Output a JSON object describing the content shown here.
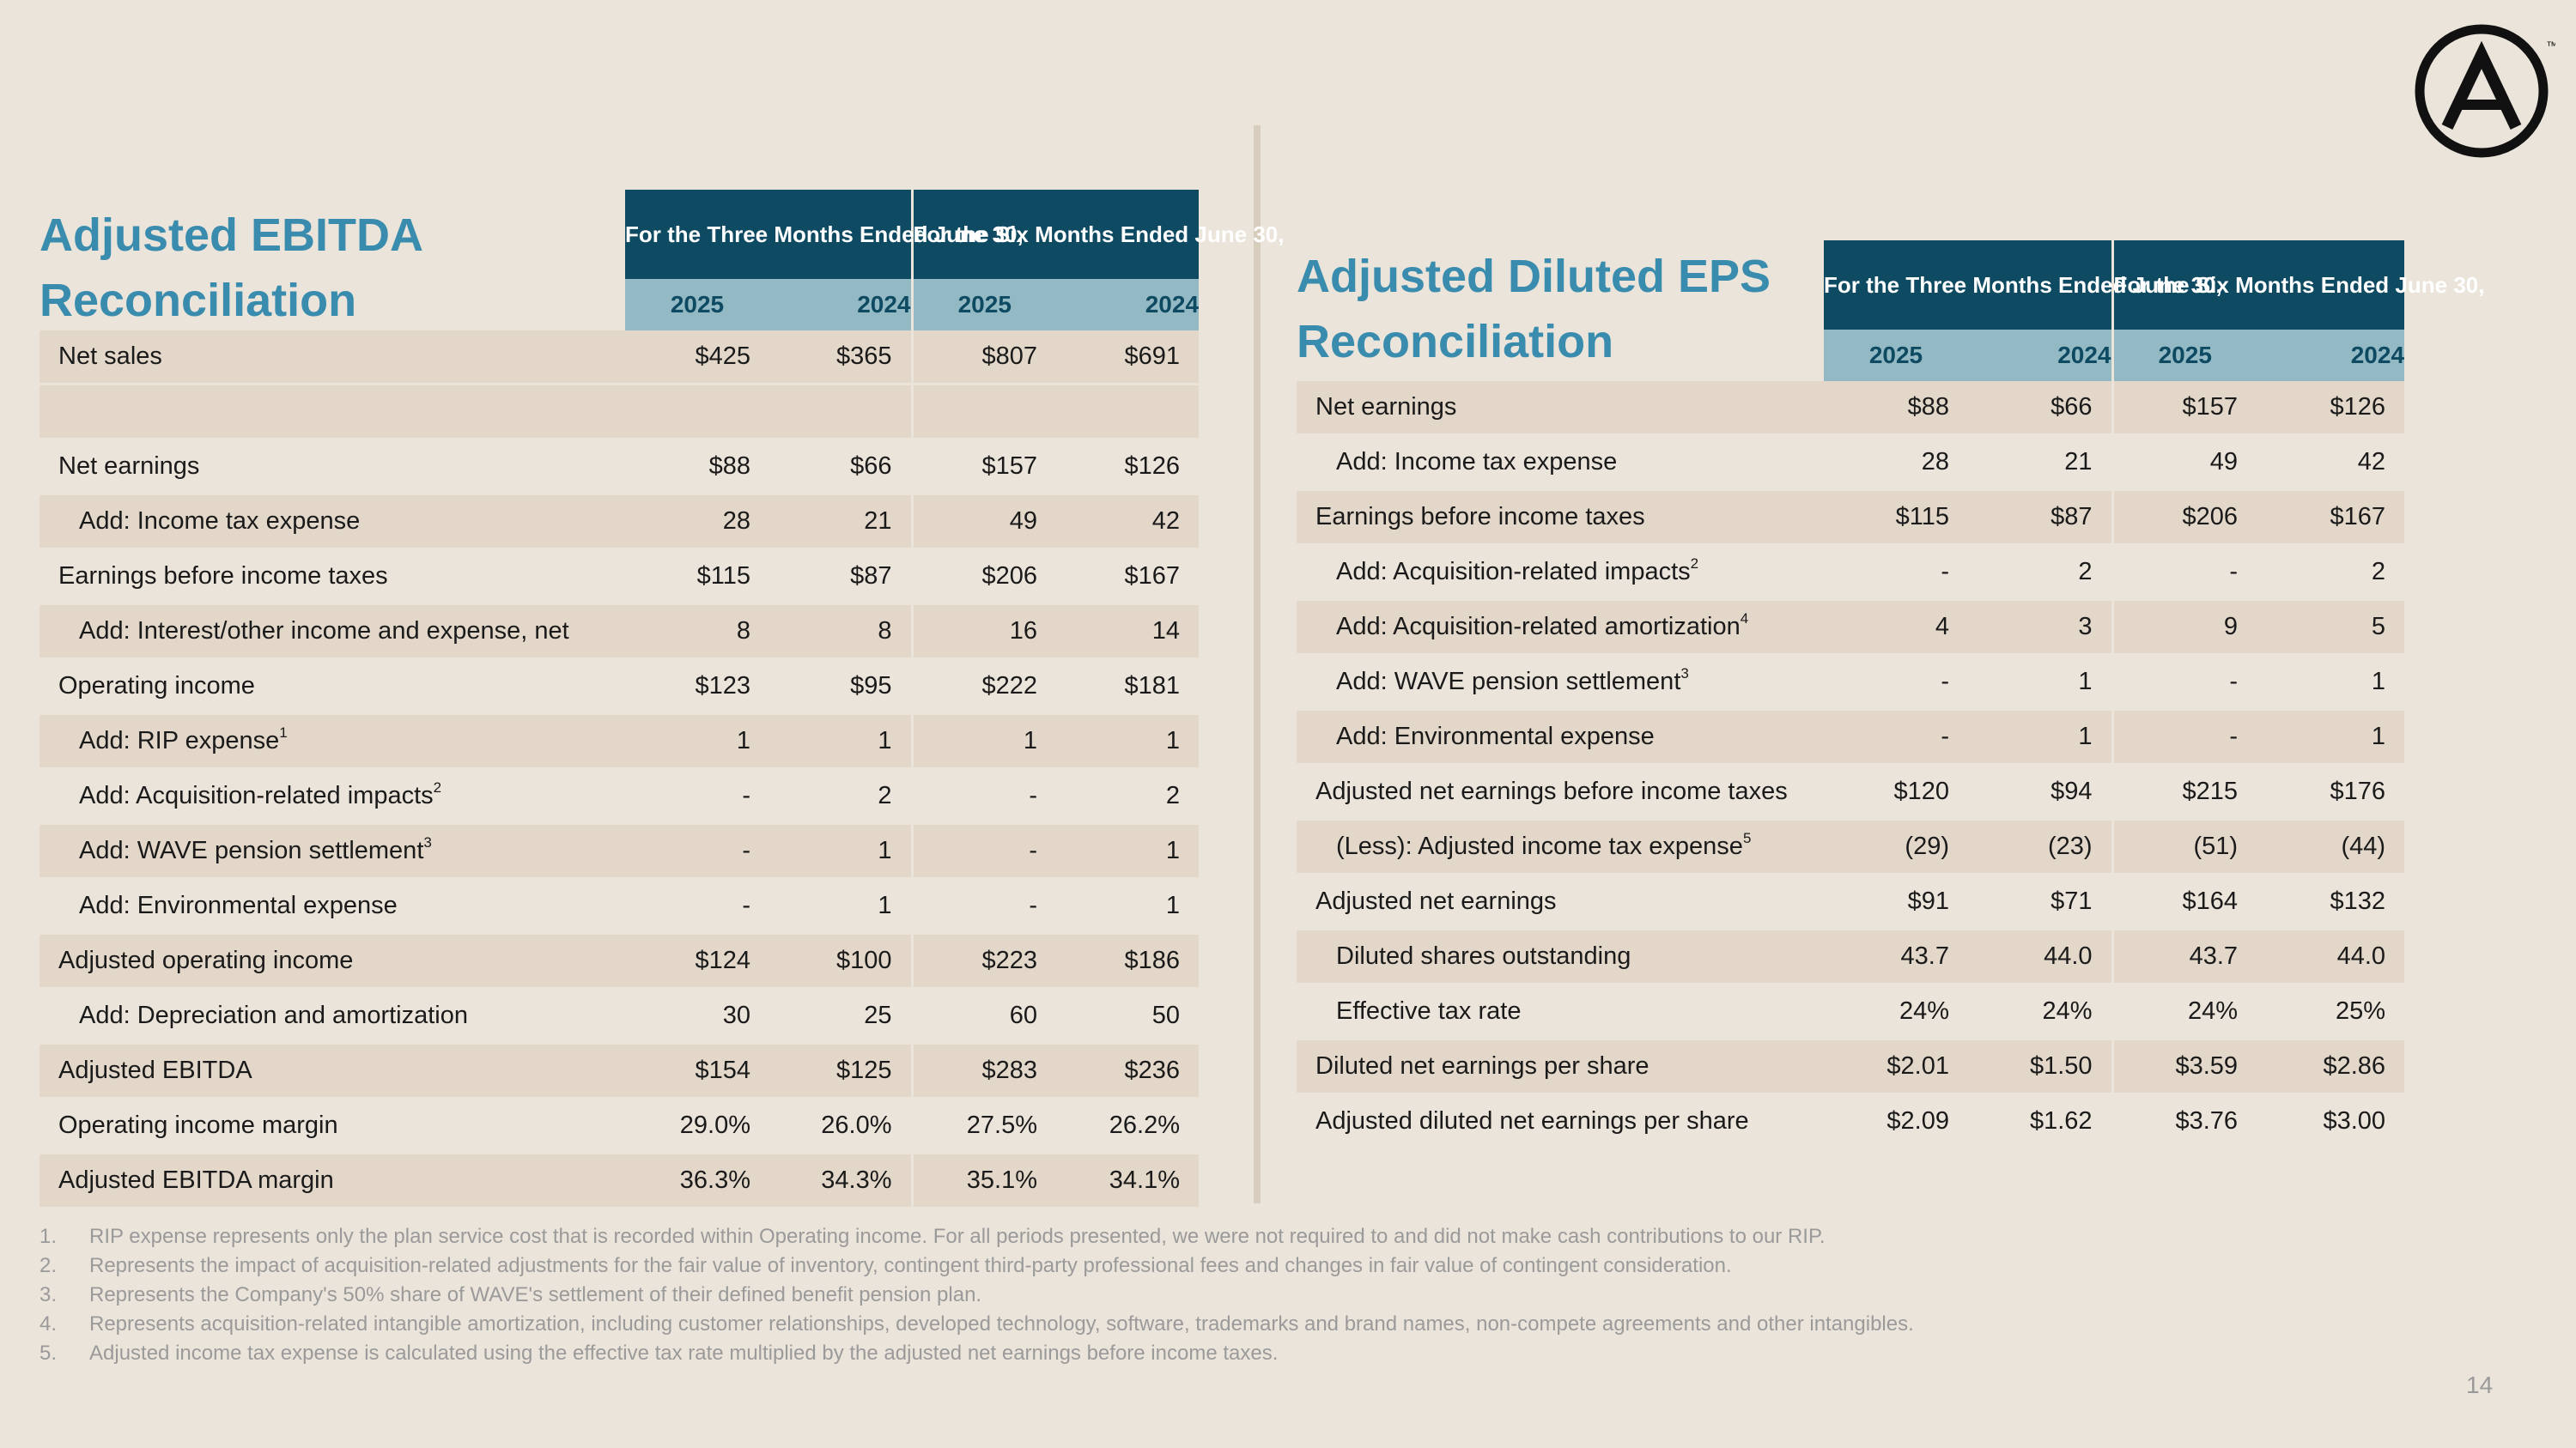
{
  "page_number": "14",
  "colors": {
    "title": "#3a8cae",
    "header_dark": "#0e4a62",
    "header_light": "#93b9c4",
    "row_shade": "#e2d7c9",
    "background": "#ebe4da"
  },
  "logo": {
    "icon": "circle-a-logo-icon",
    "trademark": "™"
  },
  "ebitda": {
    "title_line1": "Adjusted EBITDA",
    "title_line2": "Reconciliation",
    "period1": "For the Three Months Ended June 30,",
    "period2": "For the Six Months Ended June 30,",
    "years": [
      "2025",
      "2024",
      "2025",
      "2024"
    ],
    "rows": [
      {
        "label": "Net sales",
        "indent": false,
        "v": [
          "$425",
          "$365",
          "$807",
          "$691"
        ]
      },
      {
        "label": "Net earnings",
        "indent": false,
        "v": [
          "$88",
          "$66",
          "$157",
          "$126"
        ]
      },
      {
        "label": "Add: Income tax expense",
        "indent": true,
        "v": [
          "28",
          "21",
          "49",
          "42"
        ]
      },
      {
        "label": "Earnings before income taxes",
        "indent": false,
        "v": [
          "$115",
          "$87",
          "$206",
          "$167"
        ]
      },
      {
        "label": "Add: Interest/other income and expense, net",
        "indent": true,
        "v": [
          "8",
          "8",
          "16",
          "14"
        ]
      },
      {
        "label": "Operating income",
        "indent": false,
        "v": [
          "$123",
          "$95",
          "$222",
          "$181"
        ]
      },
      {
        "label": "Add: RIP expense",
        "sup": "1",
        "indent": true,
        "v": [
          "1",
          "1",
          "1",
          "1"
        ]
      },
      {
        "label": "Add: Acquisition-related impacts",
        "sup": "2",
        "indent": true,
        "v": [
          "-",
          "2",
          "-",
          "2"
        ]
      },
      {
        "label": "Add: WAVE pension settlement",
        "sup": "3",
        "indent": true,
        "v": [
          "-",
          "1",
          "-",
          "1"
        ]
      },
      {
        "label": "Add: Environmental expense",
        "indent": true,
        "v": [
          "-",
          "1",
          "-",
          "1"
        ]
      },
      {
        "label": "Adjusted operating income",
        "indent": false,
        "v": [
          "$124",
          "$100",
          "$223",
          "$186"
        ]
      },
      {
        "label": "Add: Depreciation and amortization",
        "indent": true,
        "v": [
          "30",
          "25",
          "60",
          "50"
        ]
      },
      {
        "label": "Adjusted EBITDA",
        "indent": false,
        "v": [
          "$154",
          "$125",
          "$283",
          "$236"
        ]
      },
      {
        "label": "Operating income margin",
        "indent": false,
        "v": [
          "29.0%",
          "26.0%",
          "27.5%",
          "26.2%"
        ]
      },
      {
        "label": "Adjusted EBITDA margin",
        "indent": false,
        "v": [
          "36.3%",
          "34.3%",
          "35.1%",
          "34.1%"
        ]
      }
    ]
  },
  "eps": {
    "title_line1": "Adjusted Diluted EPS",
    "title_line2": "Reconciliation",
    "period1": "For the Three Months Ended June 30,",
    "period2": "For the Six Months Ended June 30,",
    "years": [
      "2025",
      "2024",
      "2025",
      "2024"
    ],
    "rows": [
      {
        "label": "Net earnings",
        "indent": false,
        "v": [
          "$88",
          "$66",
          "$157",
          "$126"
        ]
      },
      {
        "label": "Add: Income tax expense",
        "indent": true,
        "v": [
          "28",
          "21",
          "49",
          "42"
        ]
      },
      {
        "label": "Earnings before income taxes",
        "indent": false,
        "v": [
          "$115",
          "$87",
          "$206",
          "$167"
        ]
      },
      {
        "label": "Add: Acquisition-related impacts",
        "sup": "2",
        "indent": true,
        "v": [
          "-",
          "2",
          "-",
          "2"
        ]
      },
      {
        "label": "Add: Acquisition-related amortization",
        "sup": "4",
        "indent": true,
        "v": [
          "4",
          "3",
          "9",
          "5"
        ]
      },
      {
        "label": "Add: WAVE pension settlement",
        "sup": "3",
        "indent": true,
        "v": [
          "-",
          "1",
          "-",
          "1"
        ]
      },
      {
        "label": "Add: Environmental expense",
        "indent": true,
        "v": [
          "-",
          "1",
          "-",
          "1"
        ]
      },
      {
        "label": "Adjusted net earnings before income taxes",
        "indent": false,
        "v": [
          "$120",
          "$94",
          "$215",
          "$176"
        ]
      },
      {
        "label": "(Less): Adjusted income tax expense",
        "sup": "5",
        "indent": true,
        "v": [
          "(29)",
          "(23)",
          "(51)",
          "(44)"
        ]
      },
      {
        "label": "Adjusted net earnings",
        "indent": false,
        "v": [
          "$91",
          "$71",
          "$164",
          "$132"
        ]
      },
      {
        "label": "Diluted shares outstanding",
        "indent": true,
        "v": [
          "43.7",
          "44.0",
          "43.7",
          "44.0"
        ]
      },
      {
        "label": "Effective tax rate",
        "indent": true,
        "v": [
          "24%",
          "24%",
          "24%",
          "25%"
        ]
      },
      {
        "label": "Diluted net earnings per share",
        "indent": false,
        "v": [
          "$2.01",
          "$1.50",
          "$3.59",
          "$2.86"
        ]
      },
      {
        "label": "Adjusted diluted net earnings per share",
        "indent": false,
        "v": [
          "$2.09",
          "$1.62",
          "$3.76",
          "$3.00"
        ]
      }
    ]
  },
  "footnotes": [
    {
      "num": "1.",
      "text": "RIP expense represents only the plan service cost that is recorded within Operating income. For all periods presented, we were not required to and did not make cash contributions to our RIP."
    },
    {
      "num": "2.",
      "text": "Represents the impact of acquisition-related adjustments for the fair value of inventory, contingent third-party professional fees and changes in fair value of contingent consideration."
    },
    {
      "num": "3.",
      "text": "Represents the Company's 50% share of WAVE's settlement of their defined benefit pension plan."
    },
    {
      "num": "4.",
      "text": "Represents acquisition-related intangible amortization, including customer relationships, developed technology, software, trademarks and brand names, non-compete agreements and other intangibles."
    },
    {
      "num": "5.",
      "text": "Adjusted income tax expense is calculated using the effective tax rate multiplied by the adjusted net earnings before income taxes."
    }
  ]
}
